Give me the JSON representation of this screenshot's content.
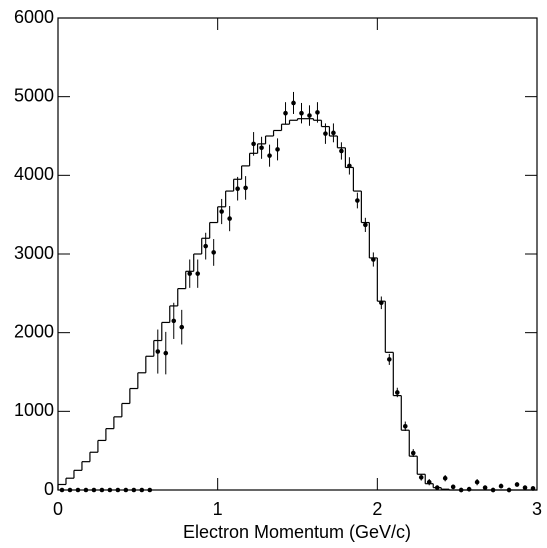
{
  "chart_data": {
    "type": "histogram",
    "x_label": "Electron Momentum (GeV/c)",
    "xlim": [
      0,
      3
    ],
    "ylim": [
      0,
      6000
    ],
    "xticks": [
      0,
      1,
      2,
      3
    ],
    "yticks": [
      0,
      1000,
      2000,
      3000,
      4000,
      5000,
      6000
    ],
    "color": "#000000",
    "bins": [
      0,
      0.05,
      0.1,
      0.15,
      0.2,
      0.25,
      0.3,
      0.35,
      0.4,
      0.45,
      0.5,
      0.55,
      0.6,
      0.65,
      0.7,
      0.75,
      0.8,
      0.85,
      0.9,
      0.95,
      1,
      1.05,
      1.1,
      1.15,
      1.2,
      1.25,
      1.3,
      1.35,
      1.4,
      1.45,
      1.5,
      1.55,
      1.6,
      1.65,
      1.7,
      1.75,
      1.8,
      1.85,
      1.9,
      1.95,
      2,
      2.05,
      2.1,
      2.15,
      2.2,
      2.25,
      2.3,
      2.35,
      2.4,
      2.45,
      2.5,
      2.55,
      2.6,
      2.65,
      2.7,
      2.75,
      2.8,
      2.85,
      2.9,
      2.95,
      3
    ],
    "values": [
      70,
      150,
      250,
      360,
      480,
      630,
      780,
      930,
      1100,
      1290,
      1490,
      1700,
      1900,
      2130,
      2340,
      2560,
      2780,
      3000,
      3200,
      3400,
      3600,
      3800,
      3950,
      4120,
      4280,
      4400,
      4500,
      4570,
      4650,
      4700,
      4720,
      4720,
      4700,
      4620,
      4500,
      4350,
      4100,
      3800,
      3400,
      2950,
      2400,
      1750,
      1200,
      760,
      430,
      200,
      80,
      30,
      10,
      0,
      0,
      0,
      0,
      0,
      0,
      0,
      0,
      0,
      0,
      0
    ],
    "points": {
      "x": [
        0.025,
        0.075,
        0.125,
        0.175,
        0.225,
        0.275,
        0.325,
        0.375,
        0.425,
        0.475,
        0.525,
        0.575,
        0.625,
        0.675,
        0.725,
        0.775,
        0.825,
        0.875,
        0.925,
        0.975,
        1.025,
        1.075,
        1.125,
        1.175,
        1.225,
        1.275,
        1.325,
        1.375,
        1.425,
        1.475,
        1.525,
        1.575,
        1.625,
        1.675,
        1.725,
        1.775,
        1.825,
        1.875,
        1.925,
        1.975,
        2.025,
        2.075,
        2.125,
        2.175,
        2.225,
        2.275,
        2.325,
        2.375,
        2.425,
        2.475,
        2.525,
        2.575,
        2.625,
        2.675,
        2.725,
        2.775,
        2.825,
        2.875,
        2.925,
        2.975
      ],
      "values": [
        0,
        0,
        0,
        0,
        0,
        0,
        0,
        0,
        0,
        0,
        0,
        0,
        1760,
        1740,
        2150,
        2070,
        2750,
        2750,
        3100,
        3020,
        3540,
        3450,
        3830,
        3840,
        4400,
        4350,
        4250,
        4330,
        4790,
        4920,
        4790,
        4760,
        4800,
        4530,
        4540,
        4310,
        4120,
        3680,
        3370,
        2930,
        2380,
        1660,
        1240,
        810,
        470,
        160,
        100,
        30,
        150,
        40,
        0,
        10,
        100,
        30,
        0,
        50,
        0,
        70,
        30,
        20
      ],
      "errors": [
        0,
        0,
        0,
        0,
        0,
        0,
        0,
        0,
        0,
        0,
        0,
        0,
        280,
        270,
        230,
        220,
        180,
        180,
        170,
        170,
        160,
        160,
        150,
        150,
        150,
        140,
        140,
        140,
        140,
        140,
        130,
        130,
        130,
        130,
        120,
        110,
        110,
        100,
        90,
        90,
        80,
        70,
        60,
        60,
        50,
        40,
        40,
        30,
        40,
        30,
        30,
        30,
        40,
        30,
        30,
        30,
        30,
        30,
        30,
        30
      ]
    }
  }
}
